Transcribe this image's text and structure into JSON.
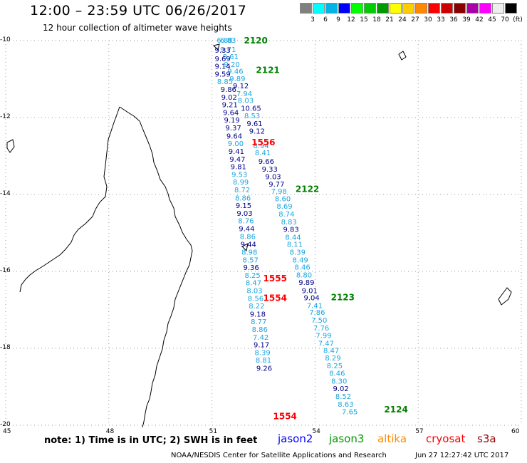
{
  "header": {
    "title": "12:00 – 23:59 UTC 06/26/2017",
    "subtitle": "12 hour collection of altimeter wave heights"
  },
  "color_scale": {
    "unit_label": "(ft)",
    "swatches": [
      {
        "color": "#808080",
        "label": "3"
      },
      {
        "color": "#00ffff",
        "label": "6"
      },
      {
        "color": "#00b4e6",
        "label": "9"
      },
      {
        "color": "#0000ff",
        "label": "12"
      },
      {
        "color": "#00ff00",
        "label": "15"
      },
      {
        "color": "#00cc00",
        "label": "18"
      },
      {
        "color": "#009900",
        "label": "21"
      },
      {
        "color": "#ffff00",
        "label": "24"
      },
      {
        "color": "#ffcc00",
        "label": "27"
      },
      {
        "color": "#ff8800",
        "label": "30"
      },
      {
        "color": "#ff0000",
        "label": "33"
      },
      {
        "color": "#cc0000",
        "label": "36"
      },
      {
        "color": "#880000",
        "label": "39"
      },
      {
        "color": "#aa00aa",
        "label": "42"
      },
      {
        "color": "#ff00ff",
        "label": "45"
      },
      {
        "color": "#eeeeee",
        "label": "70"
      },
      {
        "color": "#000000",
        "label": ""
      }
    ]
  },
  "map": {
    "lon_ticks": [
      {
        "lon": 45,
        "label": "45"
      },
      {
        "lon": 48,
        "label": "48"
      },
      {
        "lon": 51,
        "label": "51"
      },
      {
        "lon": 54,
        "label": "54"
      },
      {
        "lon": 57,
        "label": "57"
      },
      {
        "lon": 60,
        "label": "60"
      }
    ],
    "lat_ticks": [
      {
        "lat": -10,
        "label": "-10"
      },
      {
        "lat": -12,
        "label": "-12"
      },
      {
        "lat": -14,
        "label": "-14"
      },
      {
        "lat": -16,
        "label": "-16"
      },
      {
        "lat": -18,
        "label": "-18"
      },
      {
        "lat": -20,
        "label": "-20"
      }
    ],
    "lon_range": [
      45,
      60
    ],
    "lat_range": [
      -20,
      -10
    ],
    "grid": "dotted",
    "colors": {
      "dark": "#00008b",
      "light": "#1aa6e0",
      "jason3": "#008000",
      "cryosat": "#ff0000"
    },
    "pass_labels": [
      {
        "text": "2120",
        "lon": 51.93,
        "lat": -9.98,
        "sat": "jason3"
      },
      {
        "text": "2121",
        "lon": 52.28,
        "lat": -10.75,
        "sat": "jason3"
      },
      {
        "text": "1556",
        "lon": 52.15,
        "lat": -12.63,
        "sat": "cryosat"
      },
      {
        "text": "2122",
        "lon": 53.43,
        "lat": -13.84,
        "sat": "jason3"
      },
      {
        "text": "1555",
        "lon": 52.49,
        "lat": -16.17,
        "sat": "cryosat"
      },
      {
        "text": "1554",
        "lon": 52.49,
        "lat": -16.68,
        "sat": "cryosat"
      },
      {
        "text": "2123",
        "lon": 54.46,
        "lat": -16.66,
        "sat": "jason3"
      },
      {
        "text": "2124",
        "lon": 56.01,
        "lat": -19.57,
        "sat": "jason3"
      },
      {
        "text": "1554",
        "lon": 52.78,
        "lat": -19.75,
        "sat": "cryosat"
      }
    ],
    "tracks": [
      {
        "name": "jason3-pass-2120-2124",
        "points": [
          {
            "v": "6.88",
            "lon": 51.14,
            "lat": -9.98,
            "c": "light"
          },
          {
            "v": "6.83",
            "lon": 51.24,
            "lat": -9.98,
            "c": "light"
          },
          {
            "v": "9.71",
            "lon": 51.24,
            "lat": -10.22,
            "c": "light"
          },
          {
            "v": "8.61",
            "lon": 51.31,
            "lat": -10.41,
            "c": "light"
          },
          {
            "v": "9.20",
            "lon": 51.35,
            "lat": -10.61,
            "c": "light"
          },
          {
            "v": "9.46",
            "lon": 51.45,
            "lat": -10.79,
            "c": "light"
          },
          {
            "v": "9.89",
            "lon": 51.51,
            "lat": -10.98,
            "c": "light"
          },
          {
            "v": "9.12",
            "lon": 51.61,
            "lat": -11.17,
            "c": "dark"
          },
          {
            "v": "7.94",
            "lon": 51.71,
            "lat": -11.37,
            "c": "light"
          },
          {
            "v": "8.03",
            "lon": 51.75,
            "lat": -11.55,
            "c": "light"
          },
          {
            "v": "10.65",
            "lon": 51.84,
            "lat": -11.75,
            "c": "dark"
          },
          {
            "v": "8.53",
            "lon": 51.94,
            "lat": -11.94,
            "c": "light"
          },
          {
            "v": "9.61",
            "lon": 52.01,
            "lat": -12.15,
            "c": "dark"
          },
          {
            "v": "9.12",
            "lon": 52.08,
            "lat": -12.34,
            "c": "dark"
          },
          {
            "v": "8.94",
            "lon": 52.2,
            "lat": -12.72,
            "c": "light"
          },
          {
            "v": "8.41",
            "lon": 52.25,
            "lat": -12.91,
            "c": "light"
          },
          {
            "v": "9.66",
            "lon": 52.35,
            "lat": -13.13,
            "c": "dark"
          },
          {
            "v": "9.33",
            "lon": 52.45,
            "lat": -13.33,
            "c": "dark"
          },
          {
            "v": "9.03",
            "lon": 52.55,
            "lat": -13.53,
            "c": "dark"
          },
          {
            "v": "9.77",
            "lon": 52.65,
            "lat": -13.72,
            "c": "dark"
          },
          {
            "v": "7.98",
            "lon": 52.72,
            "lat": -13.91,
            "c": "light"
          },
          {
            "v": "8.60",
            "lon": 52.83,
            "lat": -14.1,
            "c": "light"
          },
          {
            "v": "8.69",
            "lon": 52.88,
            "lat": -14.3,
            "c": "light"
          },
          {
            "v": "8.74",
            "lon": 52.94,
            "lat": -14.5,
            "c": "light"
          },
          {
            "v": "8.83",
            "lon": 53.01,
            "lat": -14.7,
            "c": "light"
          },
          {
            "v": "9.83",
            "lon": 53.07,
            "lat": -14.9,
            "c": "dark"
          },
          {
            "v": "8.44",
            "lon": 53.13,
            "lat": -15.1,
            "c": "light"
          },
          {
            "v": "8.11",
            "lon": 53.18,
            "lat": -15.29,
            "c": "light"
          },
          {
            "v": "8.39",
            "lon": 53.26,
            "lat": -15.49,
            "c": "light"
          },
          {
            "v": "8.49",
            "lon": 53.34,
            "lat": -15.69,
            "c": "light"
          },
          {
            "v": "8.46",
            "lon": 53.4,
            "lat": -15.88,
            "c": "light"
          },
          {
            "v": "8.80",
            "lon": 53.45,
            "lat": -16.08,
            "c": "light"
          },
          {
            "v": "9.89",
            "lon": 53.52,
            "lat": -16.28,
            "c": "dark"
          },
          {
            "v": "9.01",
            "lon": 53.61,
            "lat": -16.49,
            "c": "dark"
          },
          {
            "v": "9.04",
            "lon": 53.67,
            "lat": -16.68,
            "c": "dark"
          },
          {
            "v": "7.41",
            "lon": 53.76,
            "lat": -16.88,
            "c": "light"
          },
          {
            "v": "7.86",
            "lon": 53.83,
            "lat": -17.06,
            "c": "light"
          },
          {
            "v": "7.50",
            "lon": 53.89,
            "lat": -17.26,
            "c": "light"
          },
          {
            "v": "7.76",
            "lon": 53.95,
            "lat": -17.46,
            "c": "light"
          },
          {
            "v": "7.99",
            "lon": 54.02,
            "lat": -17.66,
            "c": "light"
          },
          {
            "v": "7.47",
            "lon": 54.09,
            "lat": -17.86,
            "c": "light"
          },
          {
            "v": "8.47",
            "lon": 54.24,
            "lat": -18.05,
            "c": "light"
          },
          {
            "v": "8.29",
            "lon": 54.29,
            "lat": -18.24,
            "c": "light"
          },
          {
            "v": "8.25",
            "lon": 54.34,
            "lat": -18.44,
            "c": "light"
          },
          {
            "v": "8.46",
            "lon": 54.41,
            "lat": -18.64,
            "c": "light"
          },
          {
            "v": "8.30",
            "lon": 54.47,
            "lat": -18.84,
            "c": "light"
          },
          {
            "v": "9.02",
            "lon": 54.52,
            "lat": -19.04,
            "c": "dark"
          },
          {
            "v": "8.52",
            "lon": 54.59,
            "lat": -19.24,
            "c": "light"
          },
          {
            "v": "8.63",
            "lon": 54.66,
            "lat": -19.44,
            "c": "light"
          },
          {
            "v": "7.65",
            "lon": 54.78,
            "lat": -19.64,
            "c": "light"
          }
        ]
      },
      {
        "name": "cryosat-pass-1554-1556",
        "points": [
          {
            "v": "9.33",
            "lon": 51.08,
            "lat": -10.24,
            "c": "dark"
          },
          {
            "v": "9.69",
            "lon": 51.08,
            "lat": -10.46,
            "c": "dark"
          },
          {
            "v": "9.14",
            "lon": 51.08,
            "lat": -10.66,
            "c": "dark"
          },
          {
            "v": "9.59",
            "lon": 51.08,
            "lat": -10.86,
            "c": "dark"
          },
          {
            "v": "8.85",
            "lon": 51.15,
            "lat": -11.06,
            "c": "light"
          },
          {
            "v": "9.86",
            "lon": 51.25,
            "lat": -11.26,
            "c": "dark"
          },
          {
            "v": "9.02",
            "lon": 51.27,
            "lat": -11.46,
            "c": "dark"
          },
          {
            "v": "9.21",
            "lon": 51.29,
            "lat": -11.66,
            "c": "dark"
          },
          {
            "v": "9.64",
            "lon": 51.32,
            "lat": -11.86,
            "c": "dark"
          },
          {
            "v": "9.19",
            "lon": 51.35,
            "lat": -12.06,
            "c": "dark"
          },
          {
            "v": "9.37",
            "lon": 51.39,
            "lat": -12.26,
            "c": "dark"
          },
          {
            "v": "9.64",
            "lon": 51.42,
            "lat": -12.47,
            "c": "dark"
          },
          {
            "v": "9.00",
            "lon": 51.46,
            "lat": -12.67,
            "c": "light"
          },
          {
            "v": "9.41",
            "lon": 51.48,
            "lat": -12.87,
            "c": "dark"
          },
          {
            "v": "9.47",
            "lon": 51.51,
            "lat": -13.07,
            "c": "dark"
          },
          {
            "v": "9.81",
            "lon": 51.54,
            "lat": -13.27,
            "c": "dark"
          },
          {
            "v": "9.53",
            "lon": 51.57,
            "lat": -13.47,
            "c": "light"
          },
          {
            "v": "8.99",
            "lon": 51.61,
            "lat": -13.67,
            "c": "light"
          },
          {
            "v": "8.72",
            "lon": 51.65,
            "lat": -13.87,
            "c": "light"
          },
          {
            "v": "8.86",
            "lon": 51.67,
            "lat": -14.08,
            "c": "light"
          },
          {
            "v": "9.15",
            "lon": 51.69,
            "lat": -14.28,
            "c": "dark"
          },
          {
            "v": "9.03",
            "lon": 51.72,
            "lat": -14.48,
            "c": "dark"
          },
          {
            "v": "8.76",
            "lon": 51.76,
            "lat": -14.68,
            "c": "light"
          },
          {
            "v": "9.44",
            "lon": 51.78,
            "lat": -14.88,
            "c": "dark"
          },
          {
            "v": "8.86",
            "lon": 51.81,
            "lat": -15.08,
            "c": "light"
          },
          {
            "v": "9.44",
            "lon": 51.83,
            "lat": -15.29,
            "c": "dark"
          },
          {
            "v": "8.98",
            "lon": 51.86,
            "lat": -15.49,
            "c": "light"
          },
          {
            "v": "8.57",
            "lon": 51.89,
            "lat": -15.69,
            "c": "light"
          },
          {
            "v": "9.36",
            "lon": 51.91,
            "lat": -15.89,
            "c": "dark"
          },
          {
            "v": "8.25",
            "lon": 51.95,
            "lat": -16.09,
            "c": "light"
          },
          {
            "v": "8.47",
            "lon": 51.98,
            "lat": -16.29,
            "c": "light"
          },
          {
            "v": "8.03",
            "lon": 52.01,
            "lat": -16.49,
            "c": "light"
          },
          {
            "v": "8.56",
            "lon": 52.04,
            "lat": -16.69,
            "c": "light"
          },
          {
            "v": "8.22",
            "lon": 52.07,
            "lat": -16.89,
            "c": "light"
          },
          {
            "v": "9.18",
            "lon": 52.1,
            "lat": -17.1,
            "c": "dark"
          },
          {
            "v": "8.77",
            "lon": 52.13,
            "lat": -17.3,
            "c": "light"
          },
          {
            "v": "8.86",
            "lon": 52.16,
            "lat": -17.5,
            "c": "light"
          },
          {
            "v": "7.42",
            "lon": 52.19,
            "lat": -17.7,
            "c": "light"
          },
          {
            "v": "9.17",
            "lon": 52.21,
            "lat": -17.9,
            "c": "dark"
          },
          {
            "v": "8.39",
            "lon": 52.24,
            "lat": -18.1,
            "c": "light"
          },
          {
            "v": "8.81",
            "lon": 52.27,
            "lat": -18.3,
            "c": "light"
          },
          {
            "v": "9.26",
            "lon": 52.29,
            "lat": -18.51,
            "c": "dark"
          }
        ]
      }
    ]
  },
  "footer": {
    "note": "note: 1) Time is in UTC; 2) SWH is in feet",
    "satellites": [
      {
        "name": "jason2",
        "color": "#0000ff"
      },
      {
        "name": "jason3",
        "color": "#009900"
      },
      {
        "name": "altika",
        "color": "#ff8c00"
      },
      {
        "name": "cryosat",
        "color": "#ff0000"
      },
      {
        "name": "s3a",
        "color": "#990000"
      }
    ],
    "credit": "NOAA/NESDIS Center for Satellite Applications and Research",
    "updated": "Jun 27 12:27:42 UTC 2017"
  }
}
